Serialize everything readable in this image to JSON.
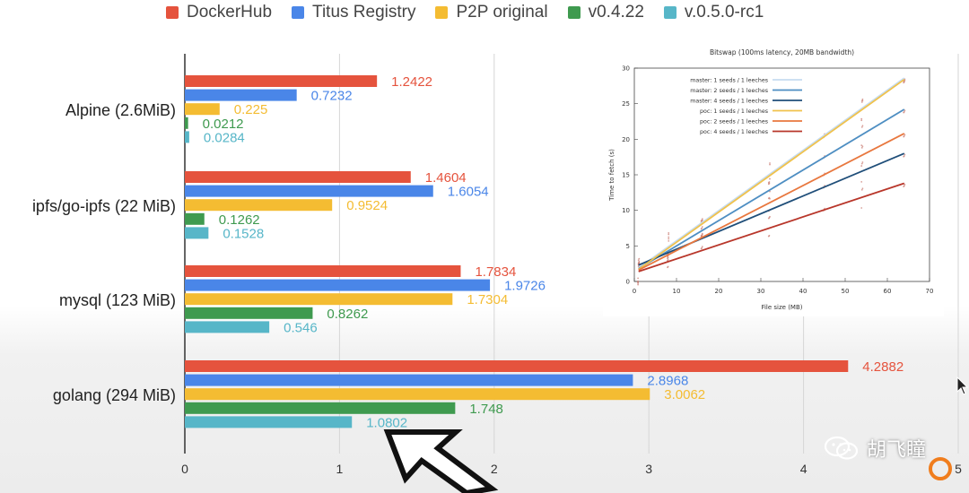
{
  "colors": {
    "DockerHub": "#e5533d",
    "Titus Registry": "#4a86e8",
    "P2P original": "#f4bc32",
    "v0.4.22": "#3f9a4f",
    "v.0.5.0-rc1": "#57b6c8"
  },
  "legend": [
    "DockerHub",
    "Titus Registry",
    "P2P original",
    "v0.4.22",
    "v.0.5.0-rc1"
  ],
  "chart_data": [
    {
      "type": "bar",
      "orientation": "horizontal",
      "categories": [
        "Alpine (2.6MiB)",
        "ipfs/go-ipfs (22 MiB)",
        "mysql (123 MiB)",
        "golang (294 MiB)"
      ],
      "series": [
        {
          "name": "DockerHub",
          "values": [
            1.2422,
            1.4604,
            1.7834,
            4.2882
          ],
          "labels": [
            "1.2422",
            "1.4604",
            "1.7834",
            "4.2882"
          ]
        },
        {
          "name": "Titus Registry",
          "values": [
            0.7232,
            1.6054,
            1.9726,
            2.8968
          ],
          "labels": [
            "0.7232",
            "1.6054",
            "1.9726",
            "2.8968"
          ]
        },
        {
          "name": "P2P original",
          "values": [
            0.225,
            0.9524,
            1.7304,
            3.0062
          ],
          "labels": [
            "0.225",
            "0.9524",
            "1.7304",
            "3.0062"
          ]
        },
        {
          "name": "v0.4.22",
          "values": [
            0.0212,
            0.1262,
            0.8262,
            1.748
          ],
          "labels": [
            "0.0212",
            "0.1262",
            "0.8262",
            "1.748"
          ]
        },
        {
          "name": "v.0.5.0-rc1",
          "values": [
            0.0284,
            0.1528,
            0.546,
            1.0802
          ],
          "labels": [
            "0.0284",
            "0.1528",
            "0.546",
            "1.0802"
          ]
        }
      ],
      "xlim": [
        0,
        5
      ],
      "xticks": [
        "0",
        "1",
        "2",
        "3",
        "4",
        "5"
      ],
      "grid": true,
      "legend_position": "top"
    },
    {
      "type": "line",
      "title": "Bitswap (100ms latency, 20MB bandwidth)",
      "xlabel": "File size (MB)",
      "ylabel": "Time to fetch (s)",
      "xlim": [
        0,
        70
      ],
      "ylim": [
        0,
        30
      ],
      "xticks": [
        "0",
        "10",
        "20",
        "30",
        "40",
        "50",
        "60",
        "70"
      ],
      "yticks": [
        "0",
        "5",
        "10",
        "15",
        "20",
        "25",
        "30"
      ],
      "legend_position": "top-left",
      "series": [
        {
          "name": "master: 1 seeds / 1 leeches",
          "color": "#c6dcf0",
          "x": [
            1,
            64
          ],
          "y": [
            1.9,
            28.6
          ]
        },
        {
          "name": "master: 2 seeds / 1 leeches",
          "color": "#4e8ec2",
          "x": [
            1,
            64
          ],
          "y": [
            1.8,
            24.2
          ]
        },
        {
          "name": "master: 4 seeds / 1 leeches",
          "color": "#1f4e79",
          "x": [
            1,
            64
          ],
          "y": [
            2.3,
            18.0
          ]
        },
        {
          "name": "poc: 1 seeds / 1 leeches",
          "color": "#f0c24c",
          "x": [
            1,
            64
          ],
          "y": [
            1.7,
            28.4
          ]
        },
        {
          "name": "poc: 2 seeds / 1 leeches",
          "color": "#e8773e",
          "x": [
            1,
            64
          ],
          "y": [
            1.6,
            20.8
          ]
        },
        {
          "name": "poc: 4 seeds / 1 leeches",
          "color": "#b8362a",
          "x": [
            1,
            64
          ],
          "y": [
            1.4,
            13.8
          ]
        }
      ],
      "scatter_x": [
        1,
        8,
        16,
        32,
        45,
        54,
        64
      ],
      "scatter_color": "#c8776e"
    }
  ],
  "watermark_text": "胡飞瞳"
}
